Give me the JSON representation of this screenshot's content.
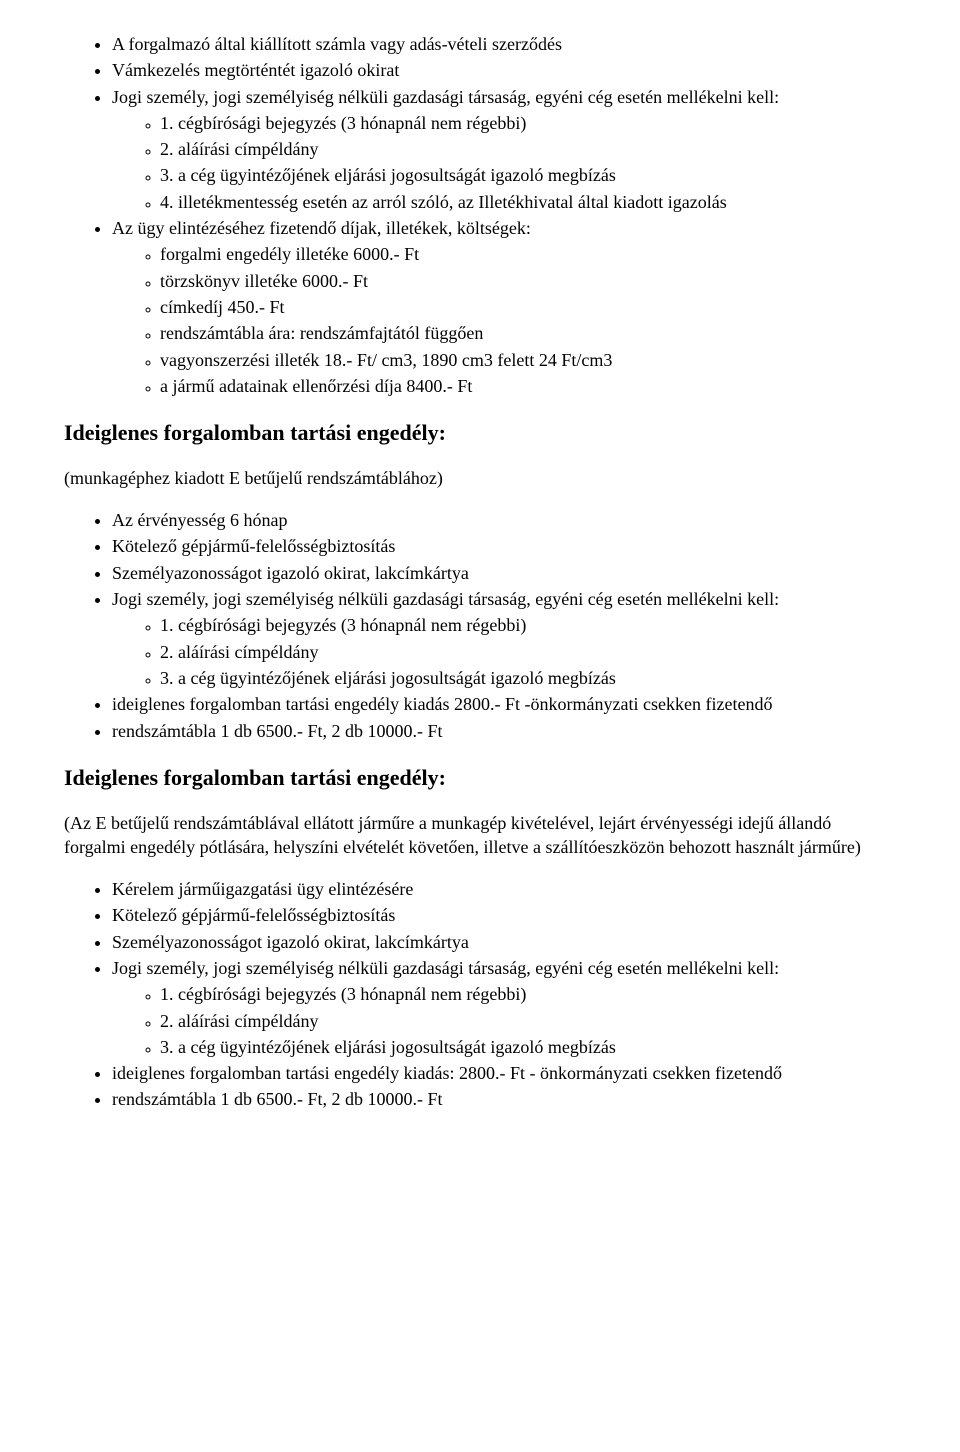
{
  "top_list": {
    "items": [
      {
        "text": "A forgalmazó által kiállított számla vagy adás-vételi szerződés"
      },
      {
        "text": "Vámkezelés megtörténtét igazoló okirat"
      },
      {
        "text": "Jogi személy, jogi személyiség nélküli gazdasági társaság, egyéni cég esetén mellékelni kell:",
        "sub": [
          "1. cégbírósági bejegyzés (3 hónapnál nem régebbi)",
          "2. aláírási címpéldány",
          "3. a cég ügyintézőjének eljárási jogosultságát igazoló megbízás",
          "4. illetékmentesség esetén az arról szóló, az Illetékhivatal által kiadott igazolás"
        ]
      },
      {
        "text": "Az ügy elintézéséhez fizetendő díjak, illetékek, költségek:",
        "sub": [
          "forgalmi engedély illetéke 6000.- Ft",
          "törzskönyv illetéke 6000.- Ft",
          "címkedíj 450.- Ft",
          "rendszámtábla ára: rendszámfajtától függően",
          "vagyonszerzési illeték 18.- Ft/ cm3, 1890 cm3 felett 24 Ft/cm3",
          "a jármű adatainak ellenőrzési díja 8400.- Ft"
        ]
      }
    ]
  },
  "section1": {
    "heading": "Ideiglenes forgalomban tartási engedély:",
    "note": "(munkagéphez kiadott E betűjelű rendszámtáblához)",
    "items": [
      {
        "text": "Az érvényesség 6 hónap"
      },
      {
        "text": "Kötelező gépjármű-felelősségbiztosítás"
      },
      {
        "text": "Személyazonosságot igazoló okirat, lakcímkártya"
      },
      {
        "text": "Jogi személy, jogi személyiség nélküli gazdasági társaság, egyéni cég esetén mellékelni kell:",
        "sub": [
          "1. cégbírósági bejegyzés (3 hónapnál nem régebbi)",
          "2. aláírási címpéldány",
          "3. a cég ügyintézőjének eljárási jogosultságát igazoló megbízás"
        ]
      },
      {
        "text": "ideiglenes forgalomban tartási engedély kiadás 2800.- Ft -önkormányzati csekken fizetendő"
      },
      {
        "text": "rendszámtábla 1 db 6500.- Ft, 2 db 10000.- Ft"
      }
    ]
  },
  "section2": {
    "heading": "Ideiglenes forgalomban tartási engedély:",
    "note": "(Az E betűjelű rendszámtáblával ellátott járműre a munkagép kivételével, lejárt érvényességi idejű állandó forgalmi engedély pótlására, helyszíni elvételét követően, illetve a szállítóeszközön behozott használt járműre)",
    "items": [
      {
        "text": "Kérelem járműigazgatási ügy elintézésére"
      },
      {
        "text": "Kötelező gépjármű-felelősségbiztosítás"
      },
      {
        "text": "Személyazonosságot igazoló okirat, lakcímkártya"
      },
      {
        "text": "Jogi személy, jogi személyiség nélküli gazdasági társaság, egyéni cég esetén mellékelni kell:",
        "sub": [
          "1. cégbírósági bejegyzés (3 hónapnál nem régebbi)",
          "2. aláírási címpéldány",
          "3. a cég ügyintézőjének eljárási jogosultságát igazoló megbízás"
        ]
      },
      {
        "text": "ideiglenes forgalomban tartási engedély kiadás: 2800.- Ft - önkormányzati csekken fizetendő"
      },
      {
        "text": "rendszámtábla 1 db 6500.- Ft, 2 db 10000.- Ft"
      }
    ]
  }
}
